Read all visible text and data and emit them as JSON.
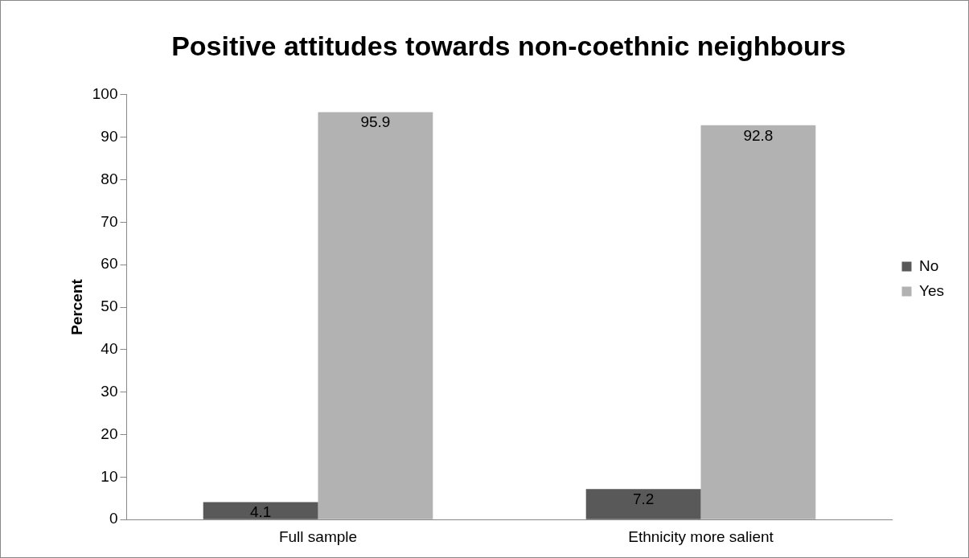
{
  "chart_data": {
    "type": "bar",
    "title": "Positive attitudes towards non-coethnic neighbours",
    "ylabel": "Percent",
    "categories": [
      "Full sample",
      "Ethnicity more salient"
    ],
    "series": [
      {
        "name": "No",
        "color": "#595959",
        "values": [
          4.1,
          7.2
        ]
      },
      {
        "name": "Yes",
        "color": "#b2b2b2",
        "values": [
          95.9,
          92.8
        ]
      }
    ],
    "ylim": [
      0,
      100
    ],
    "yticks": [
      0,
      10,
      20,
      30,
      40,
      50,
      60,
      70,
      80,
      90,
      100
    ],
    "grid": false,
    "legend": "right",
    "data_labels": true
  }
}
